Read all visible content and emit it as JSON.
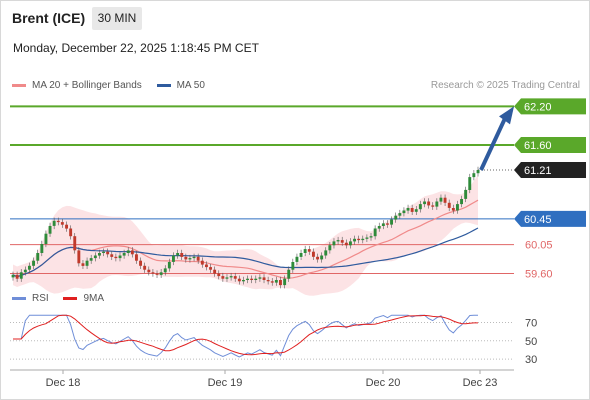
{
  "header": {
    "instrument": "Brent (ICE)",
    "timeframe": "30 MIN"
  },
  "timestamp": "Monday, December 22, 2025 1:18:45 PM CET",
  "legend": {
    "ma20_label": "MA 20 + Bollinger Bands",
    "ma50_label": "MA 50",
    "credit": "Research © 2025 Trading Central",
    "rsi_label": "RSI",
    "rsi_ma_label": "9MA"
  },
  "colors": {
    "ma20": "#f08a8a",
    "ma50": "#2f5b9e",
    "bollinger_fill": "#fbd9dc",
    "resistance": "#5aa82a",
    "support": "#e06666",
    "pivot": "#2f6fc0",
    "current": "#222222",
    "rsi": "#6f8ed8",
    "rsi_ma": "#e02020",
    "bull_candle": "#2e8b3a",
    "bear_candle": "#c0392b"
  },
  "chart_data": [
    {
      "type": "candlestick",
      "title": "Brent (ICE) 30 MIN",
      "x_labels": [
        "Dec 18",
        "Dec 19",
        "Dec 20",
        "Dec 23"
      ],
      "ylim": [
        59.2,
        62.6
      ],
      "levels": [
        {
          "value": 62.2,
          "label": "62.20",
          "kind": "resistance"
        },
        {
          "value": 61.6,
          "label": "61.60",
          "kind": "resistance"
        },
        {
          "value": 61.21,
          "label": "61.21",
          "kind": "current"
        },
        {
          "value": 60.45,
          "label": "60.45",
          "kind": "pivot"
        },
        {
          "value": 60.05,
          "label": "60.05",
          "kind": "support"
        },
        {
          "value": 59.6,
          "label": "59.60",
          "kind": "support"
        }
      ],
      "close": [
        59.58,
        59.52,
        59.62,
        59.66,
        59.72,
        59.8,
        59.92,
        60.06,
        60.22,
        60.34,
        60.42,
        60.4,
        60.36,
        60.3,
        60.18,
        59.96,
        59.76,
        59.72,
        59.8,
        59.84,
        59.88,
        59.92,
        59.94,
        59.9,
        59.86,
        59.84,
        59.88,
        59.92,
        59.96,
        59.9,
        59.8,
        59.72,
        59.66,
        59.62,
        59.6,
        59.58,
        59.62,
        59.68,
        59.78,
        59.88,
        59.92,
        59.86,
        59.82,
        59.84,
        59.86,
        59.8,
        59.74,
        59.7,
        59.66,
        59.6,
        59.56,
        59.52,
        59.54,
        59.56,
        59.52,
        59.48,
        59.5,
        59.52,
        59.5,
        59.52,
        59.54,
        59.5,
        59.48,
        59.46,
        59.5,
        59.42,
        59.52,
        59.66,
        59.78,
        59.86,
        59.92,
        59.98,
        59.94,
        59.86,
        59.82,
        59.88,
        59.96,
        60.04,
        60.1,
        60.12,
        60.08,
        60.04,
        60.1,
        60.14,
        60.12,
        60.14,
        60.16,
        60.18,
        60.3,
        60.34,
        60.38,
        60.36,
        60.44,
        60.5,
        60.54,
        60.58,
        60.62,
        60.56,
        60.6,
        60.68,
        60.72,
        60.66,
        60.64,
        60.72,
        60.78,
        60.7,
        60.62,
        60.58,
        60.68,
        60.76,
        60.9,
        61.1,
        61.16,
        61.21
      ]
    },
    {
      "type": "line",
      "title": "RSI",
      "ylim": [
        25,
        80
      ],
      "y_ticks": [
        70,
        50,
        30
      ],
      "series": [
        {
          "name": "RSI"
        },
        {
          "name": "9MA"
        }
      ]
    }
  ]
}
